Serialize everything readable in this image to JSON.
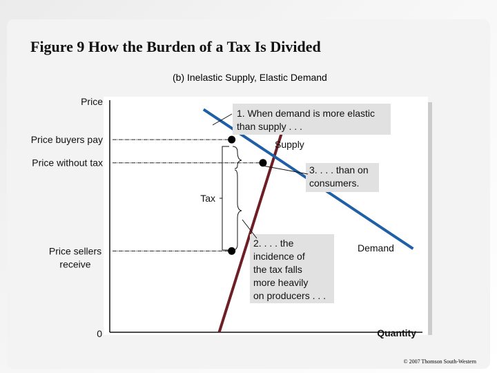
{
  "header": {
    "title": "Figure 9 How the Burden of a Tax Is Divided",
    "subtitle": "(b) Inelastic Supply, Elastic Demand"
  },
  "footer": {
    "copyright": "© 2007 Thomson South-Western"
  },
  "chart_data": {
    "type": "line",
    "title": "(b) Inelastic Supply, Elastic Demand",
    "ylabel": "Price",
    "xlabel": "Quantity",
    "origin_label": "0",
    "grid": false,
    "legend": "none",
    "ylim": [
      0,
      100
    ],
    "xlim": [
      0,
      100
    ],
    "series": [
      {
        "name": "Supply",
        "color": "#6e1f26",
        "points": [
          [
            35,
            0
          ],
          [
            55,
            86
          ]
        ]
      },
      {
        "name": "Demand",
        "color": "#1f5fa6",
        "points": [
          [
            30,
            96
          ],
          [
            97,
            36
          ]
        ]
      }
    ],
    "price_levels": [
      {
        "label": "Price buyers pay",
        "y": 83
      },
      {
        "label": "Price without tax",
        "y": 73
      },
      {
        "label": "Price sellers receive",
        "y": 35
      }
    ],
    "points_marked": [
      {
        "x": 39,
        "y": 83
      },
      {
        "x": 49,
        "y": 73
      },
      {
        "x": 39,
        "y": 35
      }
    ],
    "tax_label": "Tax",
    "annotations": [
      {
        "id": "ann1",
        "lines": [
          "1. When demand is more elastic",
          "than supply . . ."
        ]
      },
      {
        "id": "ann2",
        "lines": [
          "2. . . . the",
          "incidence of",
          "the tax falls",
          "more heavily",
          "on producers . . ."
        ]
      },
      {
        "id": "ann3",
        "lines": [
          "3. . . . than on",
          "consumers."
        ]
      }
    ]
  }
}
